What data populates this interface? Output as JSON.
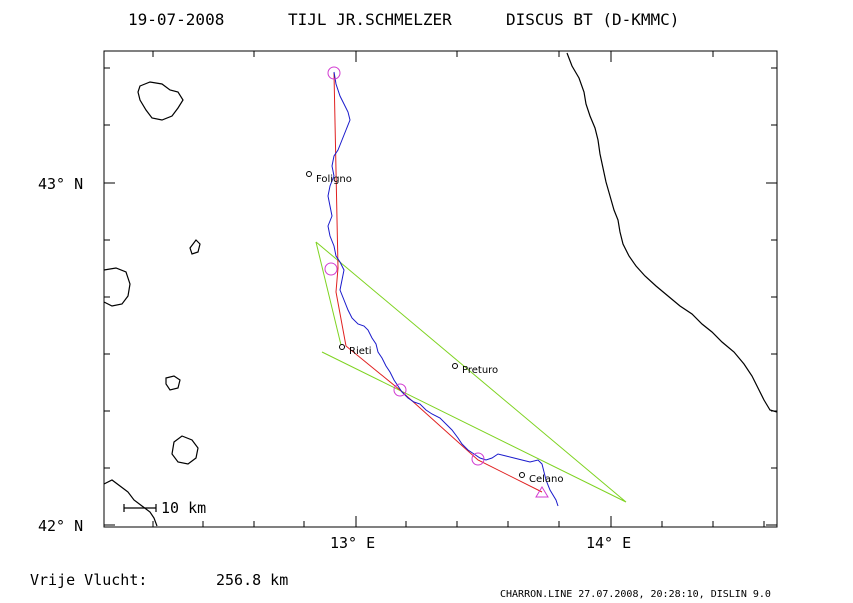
{
  "title": {
    "date": "19-07-2008",
    "pilot": "TIJL JR.SCHMELZER",
    "glider": "DISCUS BT (D-KMMC)"
  },
  "axes": {
    "y_ticks": [
      {
        "lat": 43,
        "label": "43° N"
      },
      {
        "lat": 42,
        "label": "42° N"
      }
    ],
    "x_ticks": [
      {
        "lon": 13,
        "label": "13° E"
      },
      {
        "lon": 14,
        "label": "14° E"
      }
    ],
    "lon_range": [
      12.0,
      14.65
    ],
    "lat_range": [
      41.99,
      43.38
    ]
  },
  "scale_bar": {
    "label": "10 km"
  },
  "cities": [
    {
      "name": "Foligno",
      "label": "Foligno",
      "lon": 12.81,
      "lat": 43.03
    },
    {
      "name": "Rieti",
      "label": "Rieti",
      "lon": 12.94,
      "lat": 42.52
    },
    {
      "name": "Preturo",
      "label": "Preturo",
      "lon": 13.39,
      "lat": 42.46
    },
    {
      "name": "Celano",
      "label": "Celano",
      "lon": 13.65,
      "lat": 42.14
    }
  ],
  "footer": {
    "distance_label": "Vrije Vlucht:",
    "distance_value": "256.8 km",
    "credit": "CHARRON.LINE 27.07.2008, 20:28:10, DISLIN 9.0"
  },
  "colors": {
    "track": "#1a1acc",
    "task": "#e02020",
    "triangle": "#7ed321",
    "turnpoint": "#d23cd2",
    "map": "#000000"
  }
}
